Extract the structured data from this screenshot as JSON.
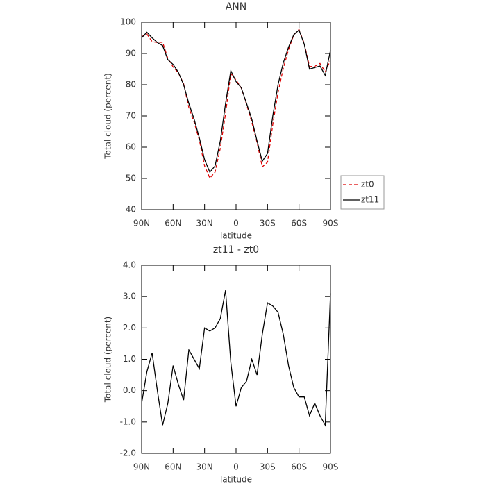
{
  "chart_data": [
    {
      "type": "line",
      "title": "ANN",
      "x_label": "latitude",
      "y_label": "Total cloud (percent)",
      "x": [
        90,
        85,
        80,
        75,
        70,
        65,
        60,
        55,
        50,
        45,
        40,
        35,
        30,
        25,
        20,
        15,
        10,
        5,
        0,
        -5,
        -10,
        -15,
        -20,
        -25,
        -30,
        -35,
        -40,
        -45,
        -50,
        -55,
        -60,
        -65,
        -70,
        -75,
        -80,
        -85,
        -90
      ],
      "series": [
        {
          "name": "zt0",
          "color": "#dd0000",
          "dashed": true,
          "values": [
            95.4,
            96.2,
            93.8,
            93.5,
            93.6,
            88.4,
            85.7,
            83.8,
            80.3,
            72.7,
            68,
            62.3,
            54,
            50.1,
            52,
            59.7,
            70.8,
            83.6,
            81.5,
            78.9,
            73.7,
            68,
            61.5,
            53.7,
            55.2,
            67.3,
            77.5,
            85.2,
            91.2,
            95.9,
            97.7,
            93.2,
            85.8,
            85.9,
            86.8,
            84.1,
            87.9
          ]
        },
        {
          "name": "zt11",
          "color": "#000000",
          "dashed": false,
          "values": [
            95,
            96.8,
            95,
            93.5,
            92.5,
            88,
            86.5,
            84,
            80,
            74,
            69,
            63,
            56,
            52,
            54,
            62,
            74,
            84.5,
            81,
            79,
            74,
            69,
            62,
            55.5,
            58,
            70,
            80,
            87,
            92,
            96,
            97.5,
            93,
            85,
            85.5,
            86,
            83,
            91
          ]
        }
      ],
      "xlim": [
        90,
        -90
      ],
      "xticks": [
        {
          "value": 90,
          "label": "90N"
        },
        {
          "value": 60,
          "label": "60N"
        },
        {
          "value": 30,
          "label": "30N"
        },
        0,
        {
          "value": -30,
          "label": "30S"
        },
        {
          "value": -60,
          "label": "60S"
        },
        {
          "value": -90,
          "label": "90S"
        }
      ],
      "ylim": [
        40,
        100
      ],
      "yticks": [
        40,
        50,
        60,
        70,
        80,
        90,
        100
      ],
      "legend": "right"
    },
    {
      "type": "line",
      "title": "zt11 - zt0",
      "x_label": "latitude",
      "y_label": "Total cloud (percent)",
      "x": [
        90,
        85,
        80,
        75,
        70,
        65,
        60,
        55,
        50,
        45,
        40,
        35,
        30,
        25,
        20,
        15,
        10,
        5,
        0,
        -5,
        -10,
        -15,
        -20,
        -25,
        -30,
        -35,
        -40,
        -45,
        -50,
        -55,
        -60,
        -65,
        -70,
        -75,
        -80,
        -85,
        -90
      ],
      "series": [
        {
          "color": "#000000",
          "dashed": false,
          "values": [
            -0.4,
            0.6,
            1.2,
            0,
            -1.1,
            -0.4,
            0.8,
            0.2,
            -0.3,
            1.3,
            1.0,
            0.7,
            2.0,
            1.9,
            2.0,
            2.3,
            3.2,
            0.9,
            -0.5,
            0.1,
            0.3,
            1.0,
            0.5,
            1.8,
            2.8,
            2.7,
            2.5,
            1.8,
            0.8,
            0.1,
            -0.2,
            -0.2,
            -0.8,
            -0.4,
            -0.8,
            -1.1,
            3.1
          ]
        }
      ],
      "xlim": [
        90,
        -90
      ],
      "xticks": [
        {
          "value": 90,
          "label": "90N"
        },
        {
          "value": 60,
          "label": "60N"
        },
        {
          "value": 30,
          "label": "30N"
        },
        0,
        {
          "value": -30,
          "label": "30S"
        },
        {
          "value": -60,
          "label": "60S"
        },
        {
          "value": -90,
          "label": "90S"
        }
      ],
      "ylim": [
        -2,
        4
      ],
      "yticks": [
        {
          "value": -2,
          "label": "-2.0"
        },
        {
          "value": -1,
          "label": "-1.0"
        },
        {
          "value": 0,
          "label": "0.0"
        },
        {
          "value": 1,
          "label": "1.0"
        },
        {
          "value": 2,
          "label": "2.0"
        },
        {
          "value": 3,
          "label": "3.0"
        },
        {
          "value": 4,
          "label": "4.0"
        }
      ]
    }
  ]
}
